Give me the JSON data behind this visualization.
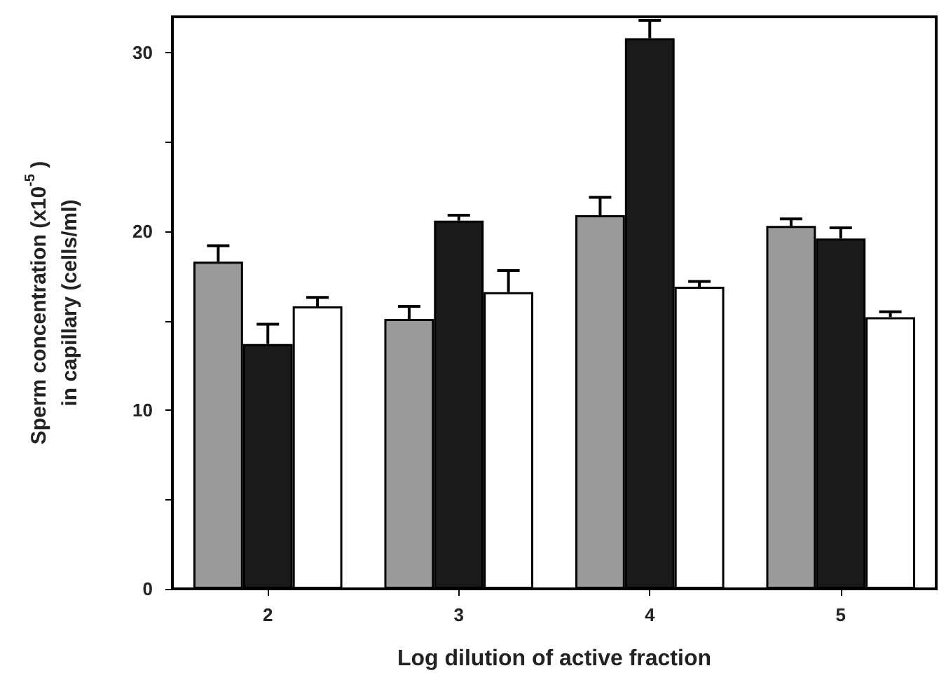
{
  "chart_data": {
    "type": "bar",
    "xlabel": "Log dilution of active fraction",
    "ylabel": "Sperm concentration (x10$^{-5}$ )\nin capillary (cells/ml)",
    "categories": [
      "2",
      "3",
      "4",
      "5"
    ],
    "series": [
      {
        "color": "#9a9a9a",
        "values": [
          18.3,
          15.1,
          20.9,
          20.3
        ],
        "errors": [
          [
            18.3,
            19.2
          ],
          [
            15.1,
            15.8
          ],
          [
            20.9,
            21.9
          ],
          [
            20.3,
            20.7
          ]
        ]
      },
      {
        "color": "#1a1a1a",
        "values": [
          13.7,
          20.6,
          30.8,
          19.6
        ],
        "errors": [
          [
            13.7,
            14.8
          ],
          [
            20.6,
            20.9
          ],
          [
            30.8,
            31.8
          ],
          [
            19.6,
            20.2
          ]
        ]
      },
      {
        "color": "#ffffff",
        "values": [
          15.8,
          16.6,
          16.9,
          15.2
        ],
        "errors": [
          [
            15.8,
            16.3
          ],
          [
            16.6,
            17.8
          ],
          [
            16.9,
            17.2
          ],
          [
            15.2,
            15.5
          ]
        ]
      }
    ],
    "ylim": [
      0,
      32
    ],
    "yticks": [
      0,
      {
        "value": 5,
        "label": null
      },
      10,
      {
        "value": 15,
        "label": null
      },
      20,
      {
        "value": 25,
        "label": null
      },
      30
    ],
    "grid": false
  }
}
